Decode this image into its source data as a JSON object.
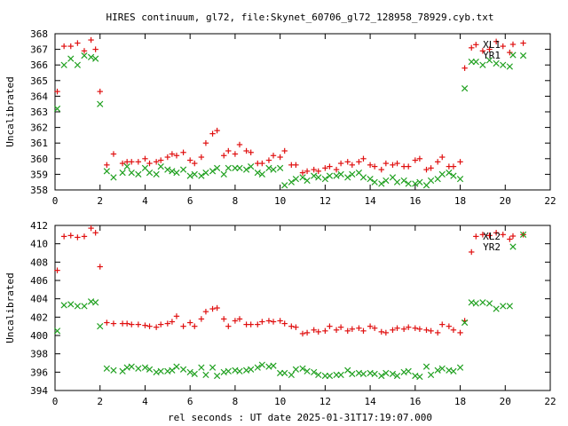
{
  "title": "HIRES continuum, gl72, file:Skynet_60706_gl72_128958_78929.cyb.txt",
  "xlabel": "rel seconds : UT date 2025-01-31T17:19:07.000",
  "chart_data": [
    {
      "type": "scatter",
      "ylabel": "Uncalibrated",
      "xlim": [
        0,
        22
      ],
      "ylim": [
        358,
        368
      ],
      "xticks": [
        0,
        2,
        4,
        6,
        8,
        10,
        12,
        14,
        16,
        18,
        20,
        22
      ],
      "yticks": [
        358,
        359,
        360,
        361,
        362,
        363,
        364,
        365,
        366,
        367,
        368
      ],
      "legend_position": "top-right",
      "series": [
        {
          "name": "XL1",
          "marker": "plus",
          "color": "#e01010",
          "x": [
            0.1,
            0.4,
            0.7,
            1.0,
            1.3,
            1.6,
            1.8,
            2.0,
            2.3,
            2.6,
            3.0,
            3.2,
            3.4,
            3.7,
            4.0,
            4.2,
            4.5,
            4.7,
            5.0,
            5.2,
            5.4,
            5.7,
            6.0,
            6.2,
            6.5,
            6.7,
            7.0,
            7.2,
            7.5,
            7.7,
            8.0,
            8.2,
            8.5,
            8.7,
            9.0,
            9.2,
            9.5,
            9.7,
            10.0,
            10.2,
            10.5,
            10.7,
            11.0,
            11.2,
            11.5,
            11.7,
            12.0,
            12.2,
            12.5,
            12.7,
            13.0,
            13.2,
            13.5,
            13.7,
            14.0,
            14.2,
            14.5,
            14.7,
            15.0,
            15.2,
            15.5,
            15.7,
            16.0,
            16.2,
            16.5,
            16.7,
            17.0,
            17.2,
            17.5,
            17.7,
            18.0,
            18.2,
            18.5,
            18.7,
            19.0,
            19.3,
            19.6,
            19.9,
            20.2,
            20.8
          ],
          "y": [
            364.3,
            367.2,
            367.2,
            367.4,
            366.9,
            367.6,
            367.0,
            364.3,
            359.6,
            360.3,
            359.7,
            359.8,
            359.8,
            359.8,
            360.0,
            359.7,
            359.8,
            359.9,
            360.1,
            360.3,
            360.2,
            360.4,
            359.9,
            359.7,
            360.1,
            361.0,
            361.6,
            361.8,
            360.2,
            360.5,
            360.3,
            360.9,
            360.5,
            360.4,
            359.7,
            359.7,
            359.9,
            360.2,
            360.1,
            360.5,
            359.6,
            359.6,
            359.1,
            359.2,
            359.3,
            359.2,
            359.4,
            359.5,
            359.3,
            359.7,
            359.8,
            359.6,
            359.8,
            360.0,
            359.6,
            359.5,
            359.3,
            359.7,
            359.6,
            359.7,
            359.5,
            359.5,
            359.9,
            360.0,
            359.3,
            359.4,
            359.8,
            360.1,
            359.5,
            359.5,
            359.8,
            365.8,
            367.1,
            367.3,
            366.9,
            367.0,
            367.5,
            367.2,
            366.8,
            367.4
          ]
        },
        {
          "name": "YR1",
          "marker": "cross",
          "color": "#20a020",
          "x": [
            0.1,
            0.4,
            0.7,
            1.0,
            1.3,
            1.6,
            1.8,
            2.0,
            2.3,
            2.6,
            3.0,
            3.2,
            3.4,
            3.7,
            4.0,
            4.2,
            4.5,
            4.7,
            5.0,
            5.2,
            5.4,
            5.7,
            6.0,
            6.2,
            6.5,
            6.7,
            7.0,
            7.2,
            7.5,
            7.7,
            8.0,
            8.2,
            8.5,
            8.7,
            9.0,
            9.2,
            9.5,
            9.7,
            10.0,
            10.2,
            10.5,
            10.7,
            11.0,
            11.2,
            11.5,
            11.7,
            12.0,
            12.2,
            12.5,
            12.7,
            13.0,
            13.2,
            13.5,
            13.7,
            14.0,
            14.2,
            14.5,
            14.7,
            15.0,
            15.2,
            15.5,
            15.7,
            16.0,
            16.2,
            16.5,
            16.7,
            17.0,
            17.2,
            17.5,
            17.7,
            18.0,
            18.2,
            18.5,
            18.7,
            19.0,
            19.3,
            19.6,
            19.9,
            20.2,
            20.8
          ],
          "y": [
            363.2,
            366.0,
            366.4,
            366.0,
            366.6,
            366.5,
            366.4,
            363.5,
            359.2,
            358.8,
            359.1,
            359.5,
            359.1,
            359.0,
            359.4,
            359.1,
            359.0,
            359.5,
            359.3,
            359.2,
            359.1,
            359.3,
            358.9,
            359.0,
            358.9,
            359.1,
            359.2,
            359.4,
            359.0,
            359.4,
            359.4,
            359.4,
            359.3,
            359.5,
            359.1,
            359.0,
            359.4,
            359.3,
            359.4,
            358.3,
            358.5,
            358.7,
            358.8,
            358.6,
            358.9,
            358.8,
            358.7,
            358.9,
            358.9,
            359.0,
            358.8,
            359.0,
            359.1,
            358.8,
            358.7,
            358.5,
            358.4,
            358.6,
            358.8,
            358.5,
            358.6,
            358.4,
            358.4,
            358.5,
            358.3,
            358.6,
            358.7,
            359.0,
            359.1,
            358.9,
            358.7,
            364.5,
            366.2,
            366.2,
            366.0,
            366.3,
            366.1,
            366.0,
            365.9,
            366.6
          ]
        }
      ]
    },
    {
      "type": "scatter",
      "ylabel": "Uncalibrated",
      "xlim": [
        0,
        22
      ],
      "ylim": [
        394,
        412
      ],
      "xticks": [
        0,
        2,
        4,
        6,
        8,
        10,
        12,
        14,
        16,
        18,
        20,
        22
      ],
      "yticks": [
        394,
        396,
        398,
        400,
        402,
        404,
        406,
        408,
        410,
        412
      ],
      "legend_position": "top-right",
      "series": [
        {
          "name": "XL2",
          "marker": "plus",
          "color": "#e01010",
          "x": [
            0.1,
            0.4,
            0.7,
            1.0,
            1.3,
            1.6,
            1.8,
            2.0,
            2.3,
            2.6,
            3.0,
            3.2,
            3.4,
            3.7,
            4.0,
            4.2,
            4.5,
            4.7,
            5.0,
            5.2,
            5.4,
            5.7,
            6.0,
            6.2,
            6.5,
            6.7,
            7.0,
            7.2,
            7.5,
            7.7,
            8.0,
            8.2,
            8.5,
            8.7,
            9.0,
            9.2,
            9.5,
            9.7,
            10.0,
            10.2,
            10.5,
            10.7,
            11.0,
            11.2,
            11.5,
            11.7,
            12.0,
            12.2,
            12.5,
            12.7,
            13.0,
            13.2,
            13.5,
            13.7,
            14.0,
            14.2,
            14.5,
            14.7,
            15.0,
            15.2,
            15.5,
            15.7,
            16.0,
            16.2,
            16.5,
            16.7,
            17.0,
            17.2,
            17.5,
            17.7,
            18.0,
            18.2,
            18.5,
            18.7,
            19.0,
            19.3,
            19.6,
            19.9,
            20.2,
            20.8
          ],
          "y": [
            407.1,
            410.8,
            410.9,
            410.7,
            410.8,
            411.7,
            411.2,
            407.5,
            401.4,
            401.3,
            401.3,
            401.3,
            401.2,
            401.2,
            401.1,
            401.0,
            400.9,
            401.2,
            401.3,
            401.5,
            402.1,
            401.0,
            401.4,
            401.0,
            401.8,
            402.6,
            402.9,
            403.0,
            401.8,
            401.0,
            401.6,
            401.8,
            401.2,
            401.2,
            401.2,
            401.5,
            401.6,
            401.5,
            401.6,
            401.3,
            401.0,
            400.9,
            400.2,
            400.3,
            400.6,
            400.4,
            400.5,
            401.0,
            400.6,
            400.9,
            400.5,
            400.7,
            400.8,
            400.5,
            401.0,
            400.8,
            400.4,
            400.3,
            400.6,
            400.8,
            400.7,
            400.9,
            400.8,
            400.7,
            400.6,
            400.5,
            400.3,
            401.2,
            401.0,
            400.6,
            400.3,
            401.6,
            409.1,
            410.8,
            411.0,
            410.9,
            411.2,
            411.0,
            410.5,
            411.0
          ]
        },
        {
          "name": "YR2",
          "marker": "cross",
          "color": "#20a020",
          "x": [
            0.1,
            0.4,
            0.7,
            1.0,
            1.3,
            1.6,
            1.8,
            2.0,
            2.3,
            2.6,
            3.0,
            3.2,
            3.4,
            3.7,
            4.0,
            4.2,
            4.5,
            4.7,
            5.0,
            5.2,
            5.4,
            5.7,
            6.0,
            6.2,
            6.5,
            6.7,
            7.0,
            7.2,
            7.5,
            7.7,
            8.0,
            8.2,
            8.5,
            8.7,
            9.0,
            9.2,
            9.5,
            9.7,
            10.0,
            10.2,
            10.5,
            10.7,
            11.0,
            11.2,
            11.5,
            11.7,
            12.0,
            12.2,
            12.5,
            12.7,
            13.0,
            13.2,
            13.5,
            13.7,
            14.0,
            14.2,
            14.5,
            14.7,
            15.0,
            15.2,
            15.5,
            15.7,
            16.0,
            16.2,
            16.5,
            16.7,
            17.0,
            17.2,
            17.5,
            17.7,
            18.0,
            18.2,
            18.5,
            18.7,
            19.0,
            19.3,
            19.6,
            19.9,
            20.2,
            20.8
          ],
          "y": [
            400.5,
            403.3,
            403.4,
            403.2,
            403.2,
            403.7,
            403.6,
            401.0,
            396.4,
            396.2,
            396.1,
            396.5,
            396.6,
            396.4,
            396.5,
            396.3,
            396.0,
            396.1,
            396.1,
            396.2,
            396.6,
            396.3,
            396.0,
            395.8,
            396.5,
            395.7,
            396.5,
            395.6,
            396.0,
            396.1,
            396.2,
            396.1,
            396.2,
            396.3,
            396.5,
            396.8,
            396.6,
            396.7,
            395.9,
            395.9,
            395.7,
            396.3,
            396.4,
            396.1,
            396.0,
            395.7,
            395.6,
            395.6,
            395.7,
            395.7,
            396.2,
            395.8,
            395.9,
            395.8,
            395.9,
            395.8,
            395.6,
            395.9,
            395.8,
            395.6,
            396.0,
            396.1,
            395.6,
            395.5,
            396.6,
            395.7,
            396.2,
            396.4,
            396.2,
            396.1,
            396.5,
            401.4,
            403.6,
            403.5,
            403.6,
            403.5,
            402.9,
            403.2,
            403.2,
            411.0
          ]
        }
      ]
    }
  ]
}
